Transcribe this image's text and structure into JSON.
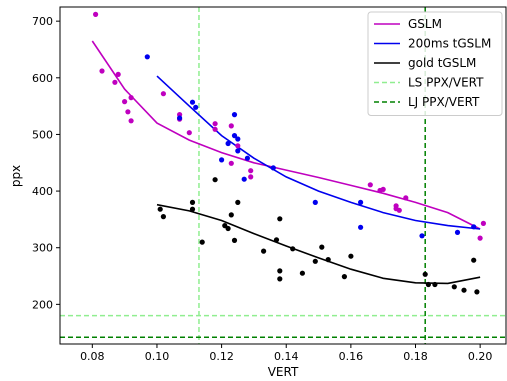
{
  "chart_data": {
    "type": "scatter",
    "title": "",
    "xlabel": "VERT",
    "ylabel": "ppx",
    "xlim": [
      0.07,
      0.208
    ],
    "ylim": [
      130,
      725
    ],
    "xticks": [
      0.08,
      0.1,
      0.12,
      0.14,
      0.16,
      0.18,
      0.2
    ],
    "xtick_labels": [
      "0.08",
      "0.10",
      "0.12",
      "0.14",
      "0.16",
      "0.18",
      "0.20"
    ],
    "yticks": [
      200,
      300,
      400,
      500,
      600,
      700
    ],
    "ytick_labels": [
      "200",
      "300",
      "400",
      "500",
      "600",
      "700"
    ],
    "grid": false,
    "legend_position": "top-right",
    "series": [
      {
        "name": "GSLM",
        "color": "#bf00bf",
        "points": [
          [
            0.081,
            712
          ],
          [
            0.083,
            612
          ],
          [
            0.087,
            592
          ],
          [
            0.088,
            606
          ],
          [
            0.09,
            558
          ],
          [
            0.091,
            540
          ],
          [
            0.092,
            524
          ],
          [
            0.092,
            565
          ],
          [
            0.102,
            572
          ],
          [
            0.107,
            535
          ],
          [
            0.107,
            527
          ],
          [
            0.11,
            503
          ],
          [
            0.118,
            519
          ],
          [
            0.118,
            509
          ],
          [
            0.123,
            449
          ],
          [
            0.123,
            515
          ],
          [
            0.125,
            480
          ],
          [
            0.129,
            425
          ],
          [
            0.129,
            436
          ],
          [
            0.166,
            411
          ],
          [
            0.169,
            401
          ],
          [
            0.17,
            403
          ],
          [
            0.174,
            369
          ],
          [
            0.174,
            374
          ],
          [
            0.175,
            366
          ],
          [
            0.177,
            388
          ],
          [
            0.2,
            317
          ],
          [
            0.201,
            343
          ]
        ],
        "fit": [
          [
            0.08,
            665
          ],
          [
            0.09,
            580
          ],
          [
            0.1,
            520
          ],
          [
            0.11,
            490
          ],
          [
            0.12,
            468
          ],
          [
            0.13,
            450
          ],
          [
            0.14,
            437
          ],
          [
            0.15,
            424
          ],
          [
            0.16,
            410
          ],
          [
            0.17,
            396
          ],
          [
            0.18,
            380
          ],
          [
            0.19,
            362
          ],
          [
            0.2,
            333
          ]
        ]
      },
      {
        "name": "200ms tGSLM",
        "color": "#0000ee",
        "points": [
          [
            0.097,
            637
          ],
          [
            0.107,
            529
          ],
          [
            0.111,
            557
          ],
          [
            0.112,
            548
          ],
          [
            0.12,
            455
          ],
          [
            0.122,
            484
          ],
          [
            0.124,
            535
          ],
          [
            0.124,
            498
          ],
          [
            0.125,
            492
          ],
          [
            0.125,
            471
          ],
          [
            0.127,
            421
          ],
          [
            0.128,
            458
          ],
          [
            0.136,
            441
          ],
          [
            0.149,
            380
          ],
          [
            0.163,
            380
          ],
          [
            0.163,
            336
          ],
          [
            0.182,
            321
          ],
          [
            0.193,
            327
          ],
          [
            0.198,
            337
          ]
        ],
        "fit": [
          [
            0.1,
            603
          ],
          [
            0.11,
            550
          ],
          [
            0.12,
            498
          ],
          [
            0.13,
            458
          ],
          [
            0.14,
            425
          ],
          [
            0.15,
            400
          ],
          [
            0.16,
            380
          ],
          [
            0.17,
            362
          ],
          [
            0.18,
            348
          ],
          [
            0.19,
            339
          ],
          [
            0.2,
            333
          ]
        ]
      },
      {
        "name": "gold tGSLM",
        "color": "#000000",
        "points": [
          [
            0.101,
            368
          ],
          [
            0.102,
            355
          ],
          [
            0.111,
            380
          ],
          [
            0.111,
            368
          ],
          [
            0.114,
            310
          ],
          [
            0.118,
            420
          ],
          [
            0.121,
            339
          ],
          [
            0.122,
            334
          ],
          [
            0.123,
            358
          ],
          [
            0.124,
            313
          ],
          [
            0.125,
            380
          ],
          [
            0.133,
            294
          ],
          [
            0.137,
            314
          ],
          [
            0.138,
            259
          ],
          [
            0.138,
            245
          ],
          [
            0.138,
            351
          ],
          [
            0.142,
            298
          ],
          [
            0.145,
            255
          ],
          [
            0.149,
            276
          ],
          [
            0.151,
            301
          ],
          [
            0.153,
            279
          ],
          [
            0.158,
            249
          ],
          [
            0.16,
            285
          ],
          [
            0.183,
            253
          ],
          [
            0.184,
            235
          ],
          [
            0.186,
            235
          ],
          [
            0.192,
            231
          ],
          [
            0.195,
            225
          ],
          [
            0.198,
            278
          ],
          [
            0.199,
            222
          ]
        ],
        "fit": [
          [
            0.1,
            376
          ],
          [
            0.11,
            365
          ],
          [
            0.12,
            348
          ],
          [
            0.13,
            325
          ],
          [
            0.14,
            303
          ],
          [
            0.15,
            282
          ],
          [
            0.16,
            262
          ],
          [
            0.17,
            246
          ],
          [
            0.18,
            238
          ],
          [
            0.19,
            237
          ],
          [
            0.2,
            248
          ]
        ]
      }
    ],
    "reference_lines": [
      {
        "name": "LS PPX/VERT",
        "color": "#90ee90",
        "x": 0.113,
        "y": 180
      },
      {
        "name": "LJ PPX/VERT",
        "color": "#008000",
        "x": 0.183,
        "y": 142
      }
    ]
  }
}
